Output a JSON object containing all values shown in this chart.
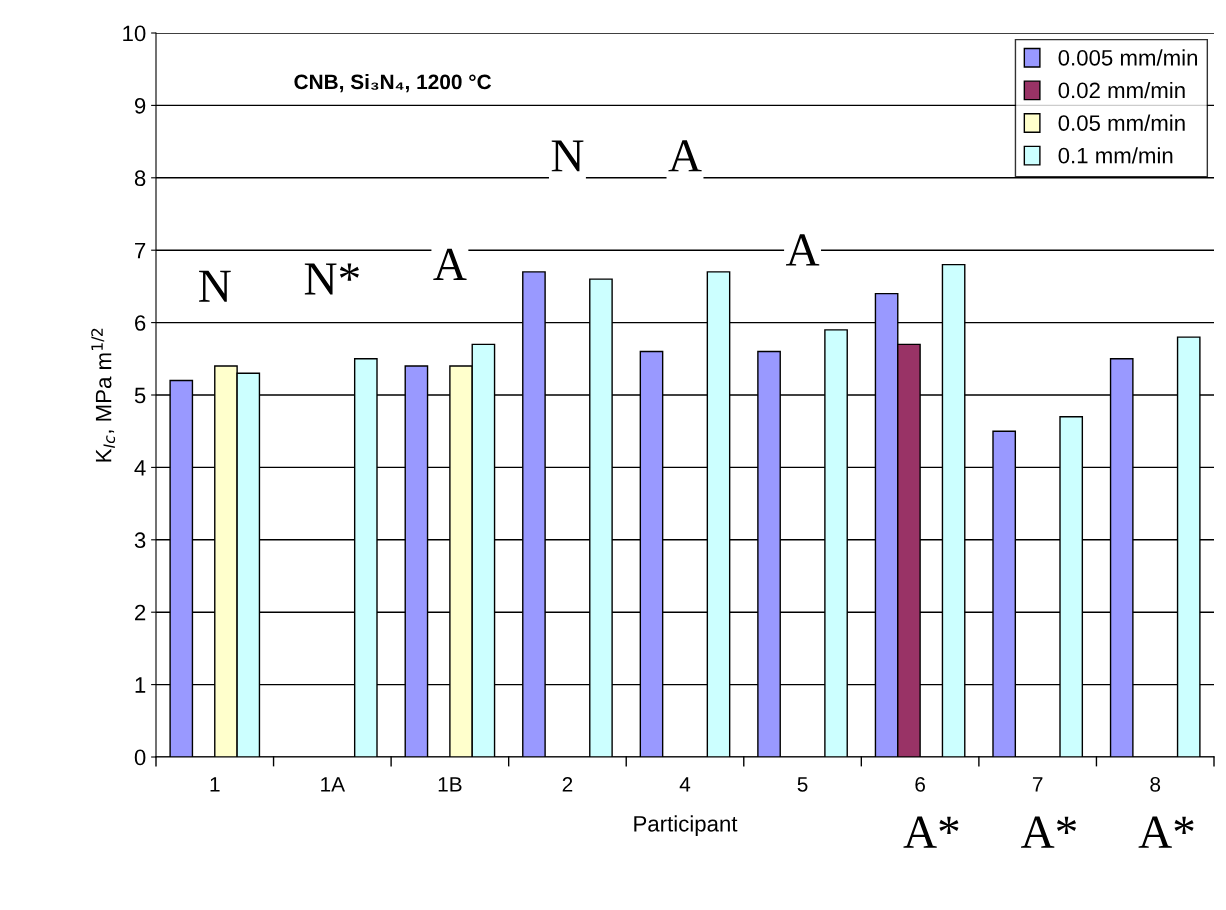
{
  "chart_data": {
    "type": "bar",
    "title": "CNB, Si₃N₄, 1200 °C",
    "xlabel": "Participant",
    "ylabel": "K$_{Ic}$, MPa m$^{1/2}$",
    "categories": [
      "1",
      "1A",
      "1B",
      "2",
      "4",
      "5",
      "6",
      "7",
      "8"
    ],
    "series": [
      {
        "name": "0.005 mm/min",
        "color": "#9999ff",
        "values": [
          5.2,
          null,
          5.4,
          6.7,
          5.6,
          5.6,
          6.4,
          4.5,
          5.5
        ]
      },
      {
        "name": "0.02 mm/min",
        "color": "#993366",
        "values": [
          null,
          null,
          null,
          null,
          null,
          null,
          5.7,
          null,
          null
        ]
      },
      {
        "name": "0.05 mm/min",
        "color": "#ffffcc",
        "values": [
          5.4,
          null,
          5.4,
          null,
          null,
          null,
          null,
          null,
          null
        ]
      },
      {
        "name": "0.1 mm/min",
        "color": "#ccffff",
        "values": [
          5.3,
          5.5,
          5.7,
          6.6,
          6.7,
          5.9,
          6.8,
          4.7,
          5.8
        ]
      }
    ],
    "ylim": [
      0,
      10
    ],
    "yticks": [
      0,
      1,
      2,
      3,
      4,
      5,
      6,
      7,
      8,
      9,
      10
    ],
    "grid": "y",
    "legend": "top right",
    "annotations": [
      "N",
      "N*",
      "A",
      "N",
      "A",
      "A",
      "A*",
      "A*",
      "A*"
    ]
  }
}
